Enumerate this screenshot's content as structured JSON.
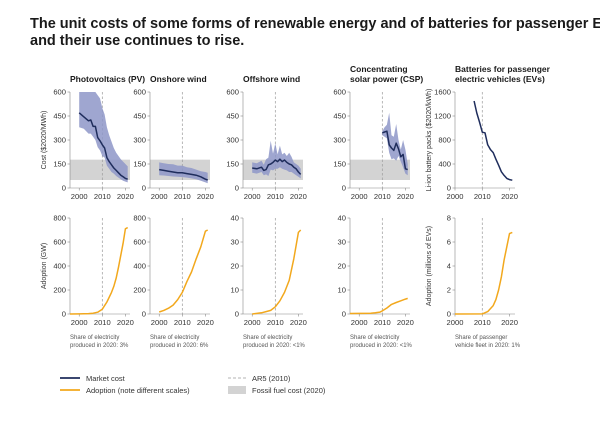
{
  "title_line1": "The unit costs of some forms of renewable energy and of batteries for passenger EVs have fallen,",
  "title_line2": "and their use continues to rise.",
  "colors": {
    "cost_line": "#1f2d5c",
    "cost_band": "#8e96c8",
    "adoption_line": "#f2a81d",
    "fossil_band": "#d3d3d3",
    "ar5_line": "#9a9a9a",
    "axis": "#888888"
  },
  "legend": {
    "market_cost": "Market cost",
    "adoption": "Adoption (note different scales)",
    "ar5": "AR5 (2010)",
    "fossil": "Fossil fuel cost (2020)"
  },
  "chart_data": [
    {
      "type": "line",
      "id": "pv-cost",
      "title_lines": [
        "Photovoltaics (PV)"
      ],
      "ylabel": "Cost ($2020/MWh)",
      "xlim": [
        1996,
        2022
      ],
      "ylim": [
        0,
        600
      ],
      "yticks": [
        0,
        150,
        300,
        450,
        600
      ],
      "xticks": [
        2000,
        2010,
        2020
      ],
      "ar5_year": 2010,
      "fossil_band": [
        50,
        177
      ],
      "series": [
        {
          "name": "Market cost",
          "x": [
            2000,
            2002,
            2004,
            2005,
            2006,
            2007,
            2008,
            2009,
            2010,
            2011,
            2012,
            2013,
            2014,
            2015,
            2016,
            2017,
            2018,
            2019,
            2020,
            2021
          ],
          "values": [
            470,
            445,
            420,
            425,
            385,
            385,
            315,
            295,
            270,
            250,
            190,
            165,
            145,
            125,
            110,
            95,
            80,
            70,
            60,
            55
          ],
          "upper": [
            600,
            600,
            600,
            600,
            600,
            600,
            580,
            560,
            500,
            460,
            380,
            330,
            290,
            250,
            220,
            200,
            180,
            165,
            150,
            135
          ],
          "lower": [
            380,
            370,
            340,
            340,
            320,
            300,
            255,
            235,
            200,
            190,
            140,
            120,
            100,
            90,
            75,
            65,
            55,
            45,
            40,
            35
          ]
        }
      ]
    },
    {
      "type": "line",
      "id": "wind-cost",
      "title_lines": [
        "Onshore wind"
      ],
      "ylabel": "",
      "xlim": [
        1996,
        2022
      ],
      "ylim": [
        0,
        600
      ],
      "yticks": [
        0,
        150,
        300,
        450,
        600
      ],
      "xticks": [
        2000,
        2010,
        2020
      ],
      "ar5_year": 2010,
      "fossil_band": [
        50,
        177
      ],
      "series": [
        {
          "name": "Market cost",
          "x": [
            2000,
            2002,
            2004,
            2006,
            2008,
            2010,
            2012,
            2014,
            2016,
            2018,
            2020,
            2021
          ],
          "values": [
            115,
            110,
            105,
            100,
            95,
            95,
            90,
            85,
            80,
            70,
            55,
            50
          ],
          "upper": [
            160,
            155,
            150,
            148,
            140,
            140,
            130,
            125,
            115,
            105,
            100,
            95
          ],
          "lower": [
            80,
            78,
            75,
            72,
            70,
            68,
            65,
            60,
            55,
            45,
            35,
            30
          ]
        }
      ]
    },
    {
      "type": "line",
      "id": "offshore-cost",
      "title_lines": [
        "Offshore wind"
      ],
      "ylabel": "",
      "xlim": [
        1996,
        2022
      ],
      "ylim": [
        0,
        600
      ],
      "yticks": [
        0,
        150,
        300,
        450,
        600
      ],
      "xticks": [
        2000,
        2010,
        2020
      ],
      "ar5_year": 2010,
      "fossil_band": [
        50,
        177
      ],
      "series": [
        {
          "name": "Market cost",
          "x": [
            2000,
            2002,
            2004,
            2005,
            2006,
            2007,
            2008,
            2009,
            2010,
            2011,
            2012,
            2013,
            2014,
            2015,
            2016,
            2017,
            2018,
            2019,
            2020,
            2021
          ],
          "values": [
            125,
            120,
            130,
            110,
            115,
            145,
            150,
            160,
            175,
            165,
            180,
            165,
            175,
            160,
            150,
            145,
            130,
            120,
            100,
            85
          ],
          "upper": [
            160,
            155,
            170,
            145,
            180,
            190,
            295,
            215,
            280,
            210,
            265,
            210,
            220,
            200,
            220,
            195,
            160,
            150,
            140,
            120
          ],
          "lower": [
            95,
            90,
            100,
            80,
            85,
            75,
            115,
            110,
            120,
            120,
            130,
            120,
            115,
            110,
            100,
            100,
            90,
            80,
            70,
            60
          ]
        }
      ]
    },
    {
      "type": "line",
      "id": "csp-cost",
      "title_lines": [
        "Concentrating",
        "solar power (CSP)"
      ],
      "ylabel": "",
      "xlim": [
        1996,
        2022
      ],
      "ylim": [
        0,
        600
      ],
      "yticks": [
        0,
        150,
        300,
        450,
        600
      ],
      "xticks": [
        2000,
        2010,
        2020
      ],
      "ar5_year": 2010,
      "fossil_band": [
        50,
        177
      ],
      "series": [
        {
          "name": "Market cost",
          "x": [
            2010,
            2011,
            2012,
            2013,
            2014,
            2015,
            2016,
            2017,
            2018,
            2019,
            2020,
            2021
          ],
          "values": [
            345,
            350,
            355,
            270,
            250,
            235,
            280,
            245,
            195,
            210,
            120,
            115
          ],
          "upper": [
            355,
            380,
            395,
            470,
            330,
            320,
            400,
            300,
            240,
            300,
            240,
            150
          ],
          "lower": [
            330,
            320,
            310,
            220,
            180,
            185,
            170,
            200,
            165,
            130,
            90,
            80
          ]
        }
      ]
    },
    {
      "type": "line",
      "id": "ev-cost",
      "title_lines": [
        "Batteries for passenger",
        "electric vehicles (EVs)"
      ],
      "ylabel": "Li-ion battery packs ($2020/kWh)",
      "xlim": [
        2000,
        2022
      ],
      "ylim": [
        0,
        1600
      ],
      "yticks": [
        0,
        400,
        800,
        1200,
        1600
      ],
      "xticks": [
        2000,
        2010,
        2020
      ],
      "ar5_year": 2010,
      "fossil_band": null,
      "series": [
        {
          "name": "Market cost",
          "x": [
            2007,
            2008,
            2009,
            2010,
            2011,
            2012,
            2013,
            2014,
            2015,
            2016,
            2017,
            2018,
            2019,
            2020,
            2021
          ],
          "values": [
            1450,
            1250,
            1100,
            930,
            920,
            720,
            640,
            590,
            480,
            380,
            270,
            210,
            160,
            140,
            130
          ]
        }
      ]
    },
    {
      "type": "line",
      "id": "pv-adoption",
      "ylabel": "Adoption (GW)",
      "xlim": [
        1996,
        2022
      ],
      "ylim": [
        0,
        800
      ],
      "yticks": [
        0,
        200,
        400,
        600,
        800
      ],
      "xticks": [
        2000,
        2010,
        2020
      ],
      "ar5_year": 2010,
      "note_lines": [
        "Share of electricity",
        "produced in 2020: 3%"
      ],
      "series": [
        {
          "name": "Adoption",
          "x": [
            1996,
            2000,
            2004,
            2006,
            2008,
            2010,
            2012,
            2014,
            2015,
            2016,
            2017,
            2018,
            2019,
            2020,
            2021
          ],
          "values": [
            0,
            1,
            3,
            7,
            15,
            40,
            100,
            180,
            230,
            300,
            390,
            490,
            590,
            710,
            720
          ]
        }
      ]
    },
    {
      "type": "line",
      "id": "wind-adoption",
      "ylabel": "",
      "xlim": [
        1996,
        2022
      ],
      "ylim": [
        0,
        800
      ],
      "yticks": [
        0,
        200,
        400,
        600,
        800
      ],
      "xticks": [
        2000,
        2010,
        2020
      ],
      "ar5_year": 2010,
      "note_lines": [
        "Share of electricity",
        "produced in 2020: 6%"
      ],
      "series": [
        {
          "name": "Adoption",
          "x": [
            2000,
            2002,
            2004,
            2006,
            2008,
            2010,
            2012,
            2014,
            2016,
            2018,
            2020,
            2021
          ],
          "values": [
            17,
            30,
            48,
            74,
            120,
            180,
            270,
            350,
            460,
            560,
            690,
            700
          ]
        }
      ]
    },
    {
      "type": "line",
      "id": "offshore-adoption",
      "ylabel": "",
      "xlim": [
        1996,
        2022
      ],
      "ylim": [
        0,
        40
      ],
      "yticks": [
        0,
        10,
        20,
        30,
        40
      ],
      "xticks": [
        2000,
        2010,
        2020
      ],
      "ar5_year": 2010,
      "note_lines": [
        "Share of electricity",
        "produced in 2020: <1%"
      ],
      "series": [
        {
          "name": "Adoption",
          "x": [
            2000,
            2004,
            2006,
            2008,
            2010,
            2012,
            2014,
            2016,
            2018,
            2020,
            2021
          ],
          "values": [
            0,
            0.5,
            1,
            1.5,
            3,
            5.5,
            9,
            14,
            23,
            34,
            35
          ]
        }
      ]
    },
    {
      "type": "line",
      "id": "csp-adoption",
      "ylabel": "",
      "xlim": [
        1996,
        2022
      ],
      "ylim": [
        0,
        40
      ],
      "yticks": [
        0,
        10,
        20,
        30,
        40
      ],
      "xticks": [
        2000,
        2010,
        2020
      ],
      "ar5_year": 2010,
      "note_lines": [
        "Share of electricity",
        "produced in 2020: <1%"
      ],
      "series": [
        {
          "name": "Adoption",
          "x": [
            1996,
            2005,
            2007,
            2009,
            2010,
            2012,
            2014,
            2016,
            2018,
            2020,
            2021
          ],
          "values": [
            0.2,
            0.3,
            0.5,
            0.8,
            1.3,
            2.5,
            4,
            4.8,
            5.5,
            6.2,
            6.5
          ]
        }
      ]
    },
    {
      "type": "line",
      "id": "ev-adoption",
      "ylabel": "Adoption (millions of EVs)",
      "xlim": [
        2000,
        2022
      ],
      "ylim": [
        0,
        8
      ],
      "yticks": [
        0,
        2,
        4,
        6,
        8
      ],
      "xticks": [
        2000,
        2010,
        2020
      ],
      "ar5_year": 2010,
      "note_lines": [
        "Share of passenger",
        "vehicle fleet in 2020: 1%"
      ],
      "series": [
        {
          "name": "Adoption",
          "x": [
            2000,
            2010,
            2012,
            2014,
            2015,
            2016,
            2017,
            2018,
            2019,
            2020,
            2021
          ],
          "values": [
            0,
            0.01,
            0.2,
            0.7,
            1.2,
            2,
            3.1,
            4.5,
            5.6,
            6.7,
            6.8
          ]
        }
      ]
    }
  ]
}
